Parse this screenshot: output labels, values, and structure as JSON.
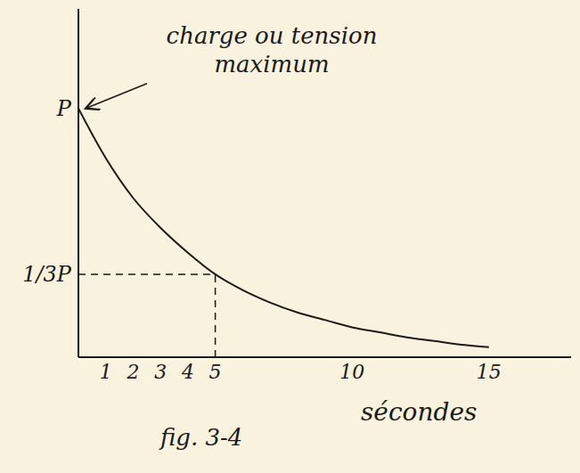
{
  "chart_data": {
    "type": "line",
    "x": [
      0,
      1,
      2,
      3,
      4,
      5,
      6,
      7,
      8,
      9,
      10,
      11,
      12,
      13,
      14,
      15
    ],
    "values": [
      1,
      0.8,
      0.64,
      0.52,
      0.42,
      0.3333,
      0.27,
      0.22,
      0.18,
      0.15,
      0.12,
      0.1,
      0.08,
      0.065,
      0.05,
      0.04
    ],
    "color": "#1a1a1a",
    "marker": "none",
    "line_style": "solid",
    "grid": false,
    "xlim": [
      0,
      18
    ],
    "xticks": [
      1,
      2,
      3,
      4,
      5,
      10,
      15
    ],
    "ylim": [
      0,
      1.4
    ],
    "yticks": [
      {
        "value": 0.3333,
        "label": "1/3P"
      },
      {
        "value": 1,
        "label": "P"
      }
    ],
    "x_label": "sécondes",
    "annotations": [
      {
        "text": "charge ou tension maximum",
        "x": 0,
        "y": 1
      }
    ],
    "marked_point": {
      "x": 5,
      "y": 0.3333
    },
    "caption": "fig. 3-4"
  }
}
